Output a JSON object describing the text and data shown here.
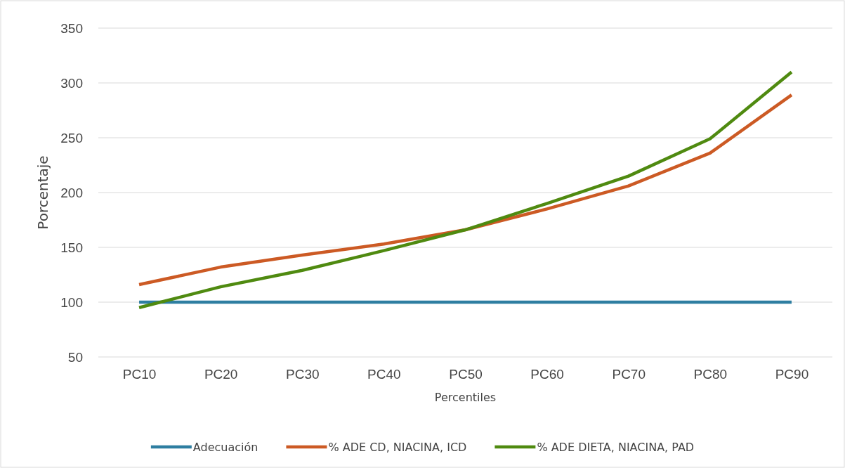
{
  "chart_data": {
    "type": "line",
    "xlabel": "Percentiles",
    "ylabel": "Porcentaje",
    "categories": [
      "PC10",
      "PC20",
      "PC30",
      "PC40",
      "PC50",
      "PC60",
      "PC70",
      "PC80",
      "PC90"
    ],
    "series": [
      {
        "name": "Adecuación",
        "color": "#2e7ea1",
        "values": [
          100,
          100,
          100,
          100,
          100,
          100,
          100,
          100,
          100
        ]
      },
      {
        "name": "% ADE CD, NIACINA, ICD",
        "color": "#cc5a24",
        "values": [
          116,
          132,
          143,
          153,
          166,
          185,
          206,
          236,
          289
        ]
      },
      {
        "name": "% ADE DIETA, NIACINA, PAD",
        "color": "#4f8a10",
        "values": [
          95,
          114,
          129,
          147,
          166,
          190,
          215,
          249,
          310
        ]
      }
    ],
    "ylim": [
      50,
      350
    ],
    "yticks": [
      50,
      100,
      150,
      200,
      250,
      300,
      350
    ],
    "grid": "y",
    "legend": "bottom",
    "marker": "none",
    "line_style": "solid"
  }
}
